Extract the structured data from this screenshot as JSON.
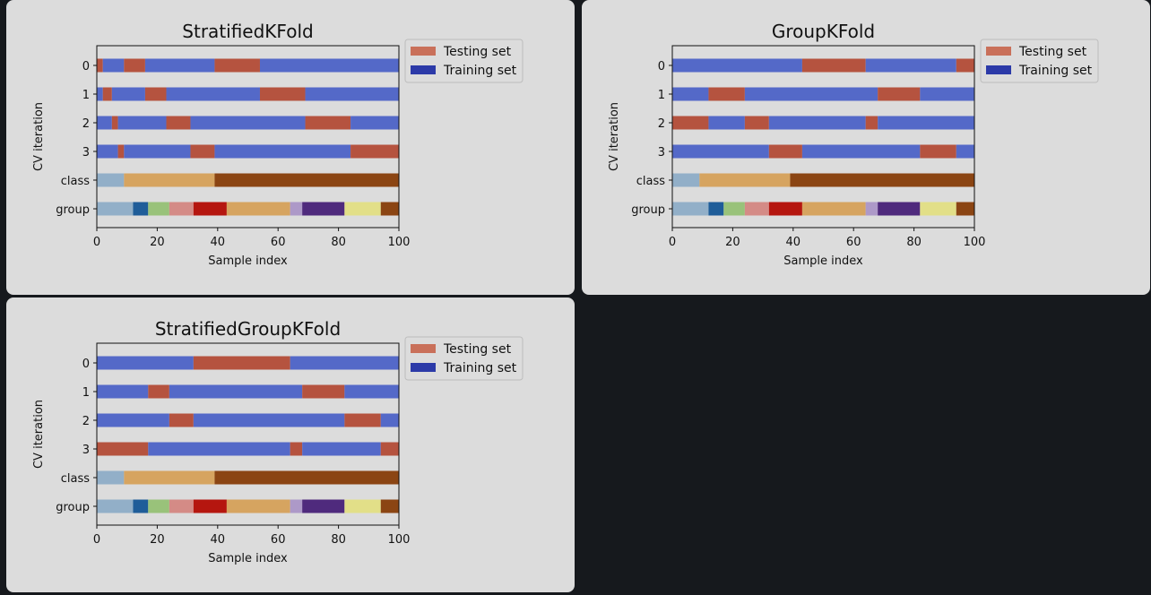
{
  "chart_data": [
    {
      "type": "bar",
      "title": "StratifiedKFold",
      "xlabel": "Sample index",
      "ylabel": "CV iteration",
      "xlim": [
        0,
        100
      ],
      "xticks": [
        "0",
        "20",
        "40",
        "60",
        "80",
        "100"
      ],
      "ycategories": [
        "0",
        "1",
        "2",
        "3",
        "class",
        "group"
      ],
      "legend": {
        "placement": "outside-top-right",
        "entries": [
          "Testing set",
          "Training set"
        ]
      },
      "cv_rows": [
        [
          [
            0,
            2,
            "test"
          ],
          [
            2,
            9,
            "train"
          ],
          [
            9,
            16,
            "test"
          ],
          [
            16,
            39,
            "train"
          ],
          [
            39,
            54,
            "test"
          ],
          [
            54,
            100,
            "train"
          ]
        ],
        [
          [
            0,
            2,
            "train"
          ],
          [
            2,
            5,
            "test"
          ],
          [
            5,
            16,
            "train"
          ],
          [
            16,
            23,
            "test"
          ],
          [
            23,
            54,
            "train"
          ],
          [
            54,
            69,
            "test"
          ],
          [
            69,
            100,
            "train"
          ]
        ],
        [
          [
            0,
            5,
            "train"
          ],
          [
            5,
            7,
            "test"
          ],
          [
            7,
            23,
            "train"
          ],
          [
            23,
            31,
            "test"
          ],
          [
            31,
            69,
            "train"
          ],
          [
            69,
            84,
            "test"
          ],
          [
            84,
            100,
            "train"
          ]
        ],
        [
          [
            0,
            7,
            "train"
          ],
          [
            7,
            9,
            "test"
          ],
          [
            9,
            31,
            "train"
          ],
          [
            31,
            39,
            "test"
          ],
          [
            39,
            84,
            "train"
          ],
          [
            84,
            100,
            "test"
          ]
        ]
      ]
    },
    {
      "type": "bar",
      "title": "GroupKFold",
      "xlabel": "Sample index",
      "ylabel": "CV iteration",
      "xlim": [
        0,
        100
      ],
      "xticks": [
        "0",
        "20",
        "40",
        "60",
        "80",
        "100"
      ],
      "ycategories": [
        "0",
        "1",
        "2",
        "3",
        "class",
        "group"
      ],
      "legend": {
        "placement": "outside-top-right",
        "entries": [
          "Testing set",
          "Training set"
        ]
      },
      "cv_rows": [
        [
          [
            0,
            43,
            "train"
          ],
          [
            43,
            64,
            "test"
          ],
          [
            64,
            94,
            "train"
          ],
          [
            94,
            100,
            "test"
          ]
        ],
        [
          [
            0,
            12,
            "train"
          ],
          [
            12,
            24,
            "test"
          ],
          [
            24,
            68,
            "train"
          ],
          [
            68,
            82,
            "test"
          ],
          [
            82,
            100,
            "train"
          ]
        ],
        [
          [
            0,
            12,
            "test"
          ],
          [
            12,
            24,
            "train"
          ],
          [
            24,
            32,
            "test"
          ],
          [
            32,
            64,
            "train"
          ],
          [
            64,
            68,
            "test"
          ],
          [
            68,
            100,
            "train"
          ]
        ],
        [
          [
            0,
            32,
            "train"
          ],
          [
            32,
            43,
            "test"
          ],
          [
            43,
            82,
            "train"
          ],
          [
            82,
            94,
            "test"
          ],
          [
            94,
            100,
            "train"
          ]
        ]
      ]
    },
    {
      "type": "bar",
      "title": "StratifiedGroupKFold",
      "xlabel": "Sample index",
      "ylabel": "CV iteration",
      "xlim": [
        0,
        100
      ],
      "xticks": [
        "0",
        "20",
        "40",
        "60",
        "80",
        "100"
      ],
      "ycategories": [
        "0",
        "1",
        "2",
        "3",
        "class",
        "group"
      ],
      "legend": {
        "placement": "outside-top-right",
        "entries": [
          "Testing set",
          "Training set"
        ]
      },
      "cv_rows": [
        [
          [
            0,
            32,
            "train"
          ],
          [
            32,
            64,
            "test"
          ],
          [
            64,
            100,
            "train"
          ]
        ],
        [
          [
            0,
            17,
            "train"
          ],
          [
            17,
            24,
            "test"
          ],
          [
            24,
            68,
            "train"
          ],
          [
            68,
            82,
            "test"
          ],
          [
            82,
            100,
            "train"
          ]
        ],
        [
          [
            0,
            24,
            "train"
          ],
          [
            24,
            32,
            "test"
          ],
          [
            32,
            82,
            "train"
          ],
          [
            82,
            94,
            "test"
          ],
          [
            94,
            100,
            "train"
          ]
        ],
        [
          [
            0,
            17,
            "test"
          ],
          [
            17,
            64,
            "train"
          ],
          [
            64,
            68,
            "test"
          ],
          [
            68,
            94,
            "train"
          ],
          [
            94,
            100,
            "test"
          ]
        ]
      ]
    }
  ],
  "class_row": [
    [
      0,
      9
    ],
    [
      9,
      39
    ],
    [
      39,
      100
    ]
  ],
  "group_row": [
    [
      0,
      12
    ],
    [
      12,
      17
    ],
    [
      17,
      24
    ],
    [
      24,
      32
    ],
    [
      32,
      43
    ],
    [
      43,
      64
    ],
    [
      64,
      68
    ],
    [
      68,
      82
    ],
    [
      82,
      94
    ],
    [
      94,
      100
    ]
  ],
  "colors": {
    "test": "#b5533f",
    "train": "#5469c8",
    "legend_test": "#c9705a",
    "legend_train": "#2c3aa8",
    "class": [
      "#92afc8",
      "#d6a460",
      "#8b4513"
    ],
    "group": [
      "#92afc8",
      "#1f5d99",
      "#99c27a",
      "#d48b86",
      "#b5160f",
      "#d6a460",
      "#ad99c8",
      "#4f2a7d",
      "#e2df88",
      "#8b4513"
    ]
  }
}
